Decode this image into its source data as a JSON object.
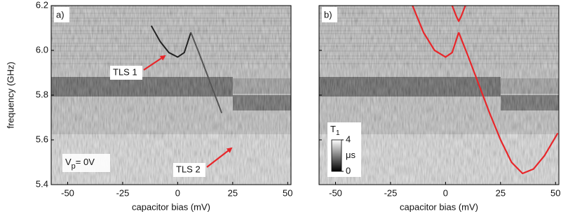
{
  "chart_data": [
    {
      "type": "heatmap",
      "panel_label": "a)",
      "ylabel": "frequency (GHz)",
      "xlabel": "capacitor bias (mV)",
      "xlim": [
        -57.5,
        51.5
      ],
      "ylim": [
        5.4,
        6.2
      ],
      "xticks": [
        -50,
        -25,
        0,
        25,
        50
      ],
      "yticks": [
        5.4,
        5.6,
        5.8,
        {
          "value": 6,
          "label": "6.0"
        },
        6.2
      ],
      "series": [
        {
          "color": "#222222",
          "x": [
            -12,
            -8,
            -4,
            0,
            3,
            6
          ],
          "values": [
            6.11,
            6.04,
            5.99,
            5.97,
            5.99,
            6.08
          ]
        },
        {
          "color": "#555555",
          "x": [
            6,
            10,
            15,
            20
          ],
          "values": [
            6.08,
            5.98,
            5.85,
            5.72
          ]
        }
      ],
      "annotations": [
        "TLS 1",
        "TLS 2"
      ],
      "voltage_label": {
        "main": "V",
        "sub": "p",
        "rest": "= 0V"
      }
    },
    {
      "type": "heatmap",
      "panel_label": "b)",
      "xlabel": "capacitor bias (mV)",
      "xlim": [
        -57.5,
        51.5
      ],
      "ylim": [
        5.4,
        6.2
      ],
      "xticks": [
        -50,
        -25,
        0,
        25,
        50
      ],
      "yticks": [
        5.4,
        5.6,
        5.8,
        6,
        6.2
      ],
      "series": [
        {
          "color": "#e8262a",
          "x": [
            -15,
            -10,
            -5,
            0,
            3,
            6
          ],
          "values": [
            6.2,
            6.08,
            6.0,
            5.97,
            5.99,
            6.08
          ]
        },
        {
          "color": "#e8262a",
          "x": [
            6,
            10,
            15,
            20,
            25,
            30,
            35,
            40,
            45,
            51
          ],
          "values": [
            6.08,
            5.98,
            5.85,
            5.72,
            5.6,
            5.5,
            5.45,
            5.47,
            5.53,
            5.63
          ]
        },
        {
          "color": "#e8262a",
          "x": [
            3,
            5,
            6,
            7,
            9
          ],
          "values": [
            6.2,
            6.15,
            6.13,
            6.15,
            6.2
          ]
        }
      ],
      "colorbar": {
        "label": "T",
        "sub": "1",
        "unit": "μs",
        "ticks": [
          0,
          4
        ]
      }
    }
  ]
}
